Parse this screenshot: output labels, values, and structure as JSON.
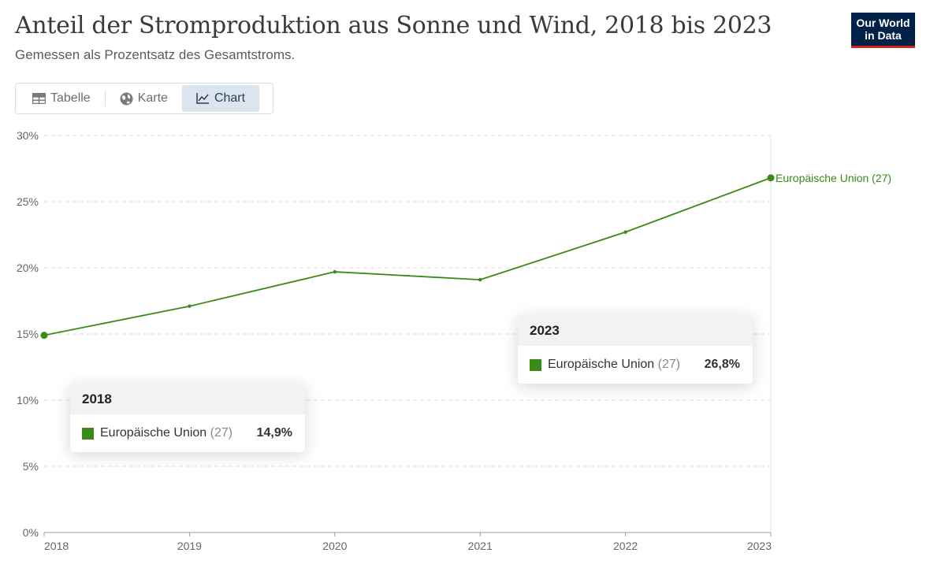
{
  "header": {
    "title": "Anteil der Stromproduktion aus Sonne und Wind, 2018 bis 2023",
    "subtitle": "Gemessen als Prozentsatz des Gesamtstroms.",
    "logo_line1": "Our World",
    "logo_line2": "in Data"
  },
  "tabs": [
    {
      "label": "Tabelle",
      "icon": "table-icon",
      "active": false
    },
    {
      "label": "Karte",
      "icon": "globe-icon",
      "active": false
    },
    {
      "label": "Chart",
      "icon": "line-chart-icon",
      "active": true
    }
  ],
  "colors": {
    "series": "#3a8a17",
    "grid": "#dddddd",
    "axis": "#999999"
  },
  "chart_data": {
    "type": "line",
    "title": "Anteil der Stromproduktion aus Sonne und Wind, 2018 bis 2023",
    "subtitle": "Gemessen als Prozentsatz des Gesamtstroms.",
    "x": [
      2018,
      2019,
      2020,
      2021,
      2022,
      2023
    ],
    "x_tick_labels": [
      "2018",
      "2019",
      "2020",
      "2021",
      "2022",
      "2023"
    ],
    "ylim": [
      0,
      30
    ],
    "y_ticks": [
      0,
      5,
      10,
      15,
      20,
      25,
      30
    ],
    "y_tick_labels": [
      "0%",
      "5%",
      "10%",
      "15%",
      "20%",
      "25%",
      "30%"
    ],
    "grid": true,
    "series": [
      {
        "name": "Europäische Union (27)",
        "end_label": "Europäische Union (27)",
        "values": [
          14.9,
          17.1,
          19.7,
          19.1,
          22.7,
          26.8
        ]
      }
    ],
    "tooltips": [
      {
        "year": "2018",
        "name": "Europäische Union",
        "suffix": "(27)",
        "value": "14,9%"
      },
      {
        "year": "2023",
        "name": "Europäische Union",
        "suffix": "(27)",
        "value": "26,8%"
      }
    ]
  }
}
